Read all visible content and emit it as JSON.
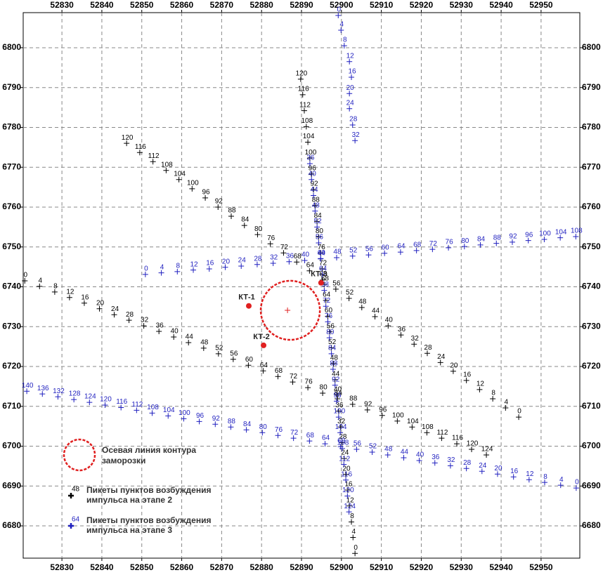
{
  "chart_data": {
    "type": "scatter",
    "grid": true,
    "xlim": [
      52820.3,
      52959.7
    ],
    "ylim": [
      6671.9,
      6808.8
    ],
    "xticks": [
      52830,
      52840,
      52850,
      52860,
      52870,
      52880,
      52890,
      52900,
      52910,
      52920,
      52930,
      52940,
      52950
    ],
    "yticks": [
      6680,
      6690,
      6700,
      6710,
      6720,
      6730,
      6740,
      6750,
      6760,
      6770,
      6780,
      6790,
      6800
    ],
    "series": [
      {
        "color": "#000000",
        "x": [
          52820.7,
          52824.4,
          52828.2,
          52831.9,
          52835.6,
          52839.4,
          52843.1,
          52846.8,
          52850.5,
          52854.3,
          52858.0,
          52861.7,
          52865.5,
          52869.2,
          52872.9,
          52876.7,
          52880.4,
          52884.1,
          52887.8,
          52891.6,
          52895.3,
          52899.0,
          52902.8,
          52906.5,
          52910.2,
          52914.0,
          52917.7,
          52921.4,
          52925.1,
          52928.9,
          52932.6,
          52936.3
        ],
        "values": [
          6741.5,
          6740.1,
          6738.7,
          6737.3,
          6735.9,
          6734.5,
          6733.0,
          6731.6,
          6730.2,
          6728.8,
          6727.4,
          6726.0,
          6724.6,
          6723.2,
          6721.8,
          6720.3,
          6718.9,
          6717.5,
          6716.1,
          6714.7,
          6713.3,
          6711.9,
          6710.5,
          6709.1,
          6707.7,
          6706.3,
          6704.8,
          6703.4,
          6702.0,
          6700.6,
          6699.2,
          6697.8
        ],
        "labels": [
          0,
          4,
          8,
          12,
          16,
          20,
          24,
          28,
          32,
          36,
          40,
          44,
          48,
          52,
          56,
          60,
          64,
          68,
          72,
          76,
          80,
          84,
          88,
          92,
          96,
          100,
          104,
          108,
          112,
          116,
          120,
          124
        ]
      },
      {
        "color": "#000000",
        "x": [
          52944.4,
          52941.1,
          52937.9,
          52934.6,
          52931.3,
          52928.0,
          52924.8,
          52921.5,
          52918.2,
          52914.9,
          52911.7,
          52908.4,
          52905.1,
          52901.9,
          52898.6,
          52895.3,
          52892.0,
          52888.8,
          52885.5,
          52882.2,
          52879.0,
          52875.7,
          52872.4,
          52869.1,
          52865.9,
          52862.6,
          52859.3,
          52856.1,
          52852.8,
          52849.5,
          52846.2
        ],
        "values": [
          6707.3,
          6709.6,
          6711.9,
          6714.2,
          6716.5,
          6718.8,
          6721.0,
          6723.3,
          6725.6,
          6727.9,
          6730.2,
          6732.5,
          6734.8,
          6737.1,
          6739.4,
          6741.7,
          6744.0,
          6746.2,
          6748.5,
          6750.8,
          6753.1,
          6755.4,
          6757.7,
          6760.0,
          6762.3,
          6764.6,
          6766.9,
          6769.2,
          6771.4,
          6773.7,
          6776.0
        ],
        "labels": [
          0,
          4,
          8,
          12,
          16,
          20,
          24,
          28,
          32,
          36,
          40,
          44,
          48,
          52,
          56,
          60,
          64,
          68,
          72,
          76,
          80,
          84,
          88,
          92,
          96,
          100,
          104,
          108,
          112,
          116,
          120
        ]
      },
      {
        "color": "#000000",
        "x": [
          52903.4,
          52902.9,
          52902.5,
          52902.0,
          52901.6,
          52901.1,
          52900.7,
          52900.2,
          52899.8,
          52899.3,
          52898.9,
          52898.4,
          52898.0,
          52897.5,
          52897.1,
          52896.6,
          52896.1,
          52895.7,
          52895.2,
          52894.8,
          52894.3,
          52893.9,
          52893.4,
          52893.0,
          52892.5,
          52892.1,
          52891.6,
          52891.2,
          52890.7,
          52890.3,
          52889.8
        ],
        "values": [
          6673.1,
          6677.1,
          6681.0,
          6685.0,
          6689.0,
          6692.9,
          6696.9,
          6700.9,
          6704.8,
          6708.8,
          6712.8,
          6716.7,
          6720.7,
          6724.7,
          6728.7,
          6732.6,
          6736.6,
          6740.6,
          6744.5,
          6748.5,
          6752.5,
          6756.4,
          6760.4,
          6764.4,
          6768.3,
          6772.3,
          6776.3,
          6780.2,
          6784.2,
          6788.2,
          6792.1
        ],
        "labels": [
          0,
          4,
          8,
          12,
          16,
          20,
          24,
          28,
          32,
          36,
          40,
          44,
          48,
          52,
          56,
          60,
          64,
          68,
          72,
          76,
          80,
          84,
          88,
          92,
          96,
          100,
          104,
          108,
          112,
          116,
          120
        ]
      },
      {
        "color": "#1f1fbf",
        "x": [
          52899.2,
          52899.9,
          52900.7,
          52902.0,
          52902.5,
          52902.0,
          52902.0,
          52902.8,
          52903.4
        ],
        "values": [
          6808.1,
          6804.4,
          6800.5,
          6796.5,
          6792.6,
          6788.5,
          6784.7,
          6780.6,
          6776.7
        ],
        "labels": [
          0,
          4,
          8,
          12,
          16,
          20,
          24,
          28,
          32
        ]
      },
      {
        "color": "#1f1fbf",
        "x": [
          52892.1,
          52892.5,
          52893.0,
          52893.4,
          52893.9,
          52894.3,
          52894.8,
          52895.2,
          52895.7,
          52896.1,
          52896.6,
          52897.0,
          52897.5,
          52897.9,
          52898.4,
          52898.8,
          52899.3,
          52899.7,
          52900.2,
          52900.6,
          52901.1,
          52901.5,
          52901.9
        ],
        "values": [
          6770.9,
          6766.9,
          6762.9,
          6759.0,
          6755.0,
          6751.0,
          6747.1,
          6743.1,
          6739.1,
          6735.1,
          6731.2,
          6727.2,
          6723.2,
          6719.3,
          6715.3,
          6711.3,
          6707.3,
          6703.4,
          6699.4,
          6695.4,
          6691.5,
          6687.5,
          6683.5
        ],
        "labels": [
          36,
          40,
          44,
          48,
          52,
          56,
          60,
          64,
          68,
          72,
          76,
          80,
          84,
          88,
          92,
          96,
          100,
          104,
          108,
          112,
          116,
          120,
          124
        ]
      },
      {
        "color": "#1f1fbf",
        "x": [
          52850.9,
          52854.9,
          52858.9,
          52862.9,
          52866.9,
          52870.9,
          52874.9,
          52878.9,
          52882.9,
          52886.9,
          52890.8,
          52894.8,
          52898.8,
          52902.8,
          52906.8,
          52910.8,
          52914.8,
          52918.8,
          52922.8,
          52926.8,
          52930.8,
          52934.8,
          52938.8,
          52942.8,
          52946.8,
          52950.8,
          52954.8,
          52958.7
        ],
        "values": [
          6743.1,
          6743.5,
          6743.8,
          6744.2,
          6744.5,
          6744.9,
          6745.2,
          6745.6,
          6745.9,
          6746.3,
          6746.6,
          6747.0,
          6747.3,
          6747.7,
          6748.0,
          6748.4,
          6748.7,
          6749.1,
          6749.4,
          6749.8,
          6750.1,
          6750.5,
          6750.9,
          6751.2,
          6751.6,
          6751.9,
          6752.3,
          6752.6
        ],
        "labels": [
          0,
          4,
          8,
          12,
          16,
          20,
          24,
          28,
          32,
          36,
          40,
          44,
          48,
          52,
          56,
          60,
          64,
          68,
          72,
          76,
          80,
          84,
          88,
          92,
          96,
          100,
          104,
          108
        ]
      },
      {
        "color": "#1f1fbf",
        "x": [
          52958.8,
          52954.9,
          52950.9,
          52947.0,
          52943.1,
          52939.1,
          52935.2,
          52931.3,
          52927.3,
          52923.4,
          52919.5,
          52915.6,
          52911.6,
          52907.7,
          52903.8,
          52899.8,
          52895.9,
          52892.0,
          52888.0,
          52884.1,
          52880.2,
          52876.2,
          52872.3,
          52868.4,
          52864.4,
          52860.5,
          52856.6,
          52852.6,
          52848.7,
          52844.8,
          52840.8,
          52836.9,
          52833.0,
          52829.0,
          52825.1,
          52821.2
        ],
        "values": [
          6689.5,
          6690.2,
          6690.9,
          6691.6,
          6692.3,
          6693.0,
          6693.7,
          6694.4,
          6695.1,
          6695.8,
          6696.4,
          6697.1,
          6697.8,
          6698.5,
          6699.2,
          6699.9,
          6700.6,
          6701.3,
          6702.0,
          6702.7,
          6703.4,
          6704.1,
          6704.8,
          6705.5,
          6706.2,
          6706.9,
          6707.6,
          6708.3,
          6709.0,
          6709.7,
          6710.3,
          6711.0,
          6711.7,
          6712.4,
          6713.1,
          6713.8
        ],
        "labels": [
          0,
          4,
          8,
          12,
          16,
          20,
          24,
          28,
          32,
          36,
          40,
          44,
          48,
          52,
          56,
          60,
          64,
          68,
          72,
          76,
          80,
          84,
          88,
          92,
          96,
          100,
          104,
          108,
          112,
          116,
          120,
          124,
          128,
          132,
          136,
          140
        ]
      }
    ],
    "stations": [
      {
        "label": "КТ-1",
        "x": 52876.8,
        "y": 6735.2
      },
      {
        "label": "КТ-2",
        "x": 52880.5,
        "y": 6725.3
      },
      {
        "label": "КТ-3",
        "x": 52894.9,
        "y": 6741.0
      }
    ],
    "station_color": "#e02020",
    "contour": {
      "x": 52887.2,
      "y": 6734.1,
      "r": 7.4,
      "color": "#e02020"
    },
    "legend": [
      {
        "text": [
          "Осевая линия контура",
          "заморозки"
        ]
      },
      {
        "sample_label": 48,
        "text": [
          "Пикеты пунктов возбуждения",
          "импульса на этапе 2"
        ]
      },
      {
        "sample_label": 64,
        "text": [
          "Пикеты пунктов возбуждения",
          "импульса на этапе 3"
        ]
      }
    ]
  }
}
